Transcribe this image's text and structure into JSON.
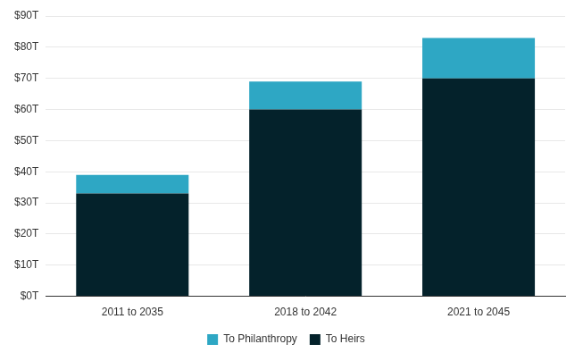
{
  "chart_data": {
    "type": "bar",
    "categories": [
      "2011 to 2035",
      "2018 to 2042",
      "2021 to 2045"
    ],
    "series": [
      {
        "name": "To Heirs",
        "color": "#04222b",
        "values": [
          33,
          60,
          70
        ]
      },
      {
        "name": "To Philanthropy",
        "color": "#2ea7c4",
        "values": [
          6,
          9,
          13
        ]
      }
    ],
    "stacked": true,
    "ylim": [
      0,
      90
    ],
    "yticks": [
      {
        "value": 0,
        "label": "$0T"
      },
      {
        "value": 10,
        "label": "$10T"
      },
      {
        "value": 20,
        "label": "$20T"
      },
      {
        "value": 30,
        "label": "$30T"
      },
      {
        "value": 40,
        "label": "$40T"
      },
      {
        "value": 50,
        "label": "$50T"
      },
      {
        "value": 60,
        "label": "$60T"
      },
      {
        "value": 70,
        "label": "$70T"
      },
      {
        "value": 80,
        "label": "$80T"
      },
      {
        "value": 90,
        "label": "$90T"
      }
    ],
    "grid": true,
    "legend": "bottom"
  }
}
